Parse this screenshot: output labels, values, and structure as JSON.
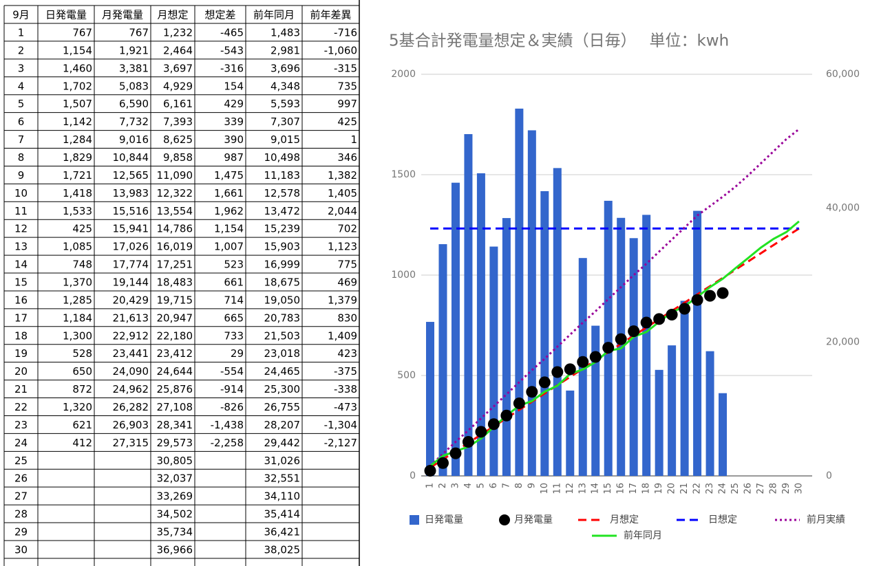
{
  "table": {
    "header": [
      "9月",
      "日発電量",
      "月発電量",
      "月想定",
      "想定差",
      "前年同月",
      "前年差異"
    ],
    "rows": [
      [
        "1",
        "767",
        "767",
        "1,232",
        "-465",
        "1,483",
        "-716"
      ],
      [
        "2",
        "1,154",
        "1,921",
        "2,464",
        "-543",
        "2,981",
        "-1,060"
      ],
      [
        "3",
        "1,460",
        "3,381",
        "3,697",
        "-316",
        "3,696",
        "-315"
      ],
      [
        "4",
        "1,702",
        "5,083",
        "4,929",
        "154",
        "4,348",
        "735"
      ],
      [
        "5",
        "1,507",
        "6,590",
        "6,161",
        "429",
        "5,593",
        "997"
      ],
      [
        "6",
        "1,142",
        "7,732",
        "7,393",
        "339",
        "7,307",
        "425"
      ],
      [
        "7",
        "1,284",
        "9,016",
        "8,625",
        "390",
        "9,015",
        "1"
      ],
      [
        "8",
        "1,829",
        "10,844",
        "9,858",
        "987",
        "10,498",
        "346"
      ],
      [
        "9",
        "1,721",
        "12,565",
        "11,090",
        "1,475",
        "11,183",
        "1,382"
      ],
      [
        "10",
        "1,418",
        "13,983",
        "12,322",
        "1,661",
        "12,578",
        "1,405"
      ],
      [
        "11",
        "1,533",
        "15,516",
        "13,554",
        "1,962",
        "13,472",
        "2,044"
      ],
      [
        "12",
        "425",
        "15,941",
        "14,786",
        "1,154",
        "15,239",
        "702"
      ],
      [
        "13",
        "1,085",
        "17,026",
        "16,019",
        "1,007",
        "15,903",
        "1,123"
      ],
      [
        "14",
        "748",
        "17,774",
        "17,251",
        "523",
        "16,999",
        "775"
      ],
      [
        "15",
        "1,370",
        "19,144",
        "18,483",
        "661",
        "18,675",
        "469"
      ],
      [
        "16",
        "1,285",
        "20,429",
        "19,715",
        "714",
        "19,050",
        "1,379"
      ],
      [
        "17",
        "1,184",
        "21,613",
        "20,947",
        "665",
        "20,783",
        "830"
      ],
      [
        "18",
        "1,300",
        "22,912",
        "22,180",
        "733",
        "21,503",
        "1,409"
      ],
      [
        "19",
        "528",
        "23,441",
        "23,412",
        "29",
        "23,018",
        "423"
      ],
      [
        "20",
        "650",
        "24,090",
        "24,644",
        "-554",
        "24,465",
        "-375"
      ],
      [
        "21",
        "872",
        "24,962",
        "25,876",
        "-914",
        "25,300",
        "-338"
      ],
      [
        "22",
        "1,320",
        "26,282",
        "27,108",
        "-826",
        "26,755",
        "-473"
      ],
      [
        "23",
        "621",
        "26,903",
        "28,341",
        "-1,438",
        "28,207",
        "-1,304"
      ],
      [
        "24",
        "412",
        "27,315",
        "29,573",
        "-2,258",
        "29,442",
        "-2,127"
      ],
      [
        "25",
        null,
        null,
        "30,805",
        null,
        "31,026",
        null
      ],
      [
        "26",
        null,
        null,
        "32,037",
        null,
        "32,551",
        null
      ],
      [
        "27",
        null,
        null,
        "33,269",
        null,
        "34,110",
        null
      ],
      [
        "28",
        null,
        null,
        "34,502",
        null,
        "35,414",
        null
      ],
      [
        "29",
        null,
        null,
        "35,734",
        null,
        "36,421",
        null
      ],
      [
        "30",
        null,
        null,
        "36,966",
        null,
        "38,025",
        null
      ]
    ]
  },
  "chart_data": {
    "type": "combo",
    "title": "5基合計発電量想定＆実績（日毎）　 単位：kwh",
    "categories": [
      1,
      2,
      3,
      4,
      5,
      6,
      7,
      8,
      9,
      10,
      11,
      12,
      13,
      14,
      15,
      16,
      17,
      18,
      19,
      20,
      21,
      22,
      23,
      24,
      25,
      26,
      27,
      28,
      29,
      30
    ],
    "ylim": [
      0,
      2000
    ],
    "yticks": [
      0,
      500,
      1000,
      1500,
      2000
    ],
    "y2lim": [
      0,
      60000
    ],
    "y2ticks": [
      0,
      {
        "value": 20000,
        "label": "20,000"
      },
      {
        "value": 40000,
        "label": "40,000"
      },
      {
        "value": 60000,
        "label": "60,000"
      }
    ],
    "grid": true,
    "legend": "bottom",
    "series": [
      {
        "name": "日発電量",
        "type": "bar",
        "color": "#3366cc",
        "values": [
          767,
          1154,
          1460,
          1702,
          1507,
          1142,
          1284,
          1829,
          1721,
          1418,
          1533,
          425,
          1085,
          748,
          1370,
          1285,
          1184,
          1300,
          528,
          650,
          872,
          1320,
          621,
          412,
          null,
          null,
          null,
          null,
          null,
          null
        ]
      },
      {
        "name": "月発電量",
        "type": "scatter",
        "axis": "y2",
        "color": "#000000",
        "values": [
          767,
          1921,
          3381,
          5083,
          6590,
          7732,
          9016,
          10844,
          12565,
          13983,
          15516,
          15941,
          17026,
          17774,
          19144,
          20429,
          21613,
          22912,
          23441,
          24090,
          24962,
          26282,
          26903,
          27315,
          null,
          null,
          null,
          null,
          null,
          null
        ]
      },
      {
        "name": "月想定",
        "type": "line",
        "dash": "dashed",
        "axis": "y2",
        "color": "#ff0000",
        "values": [
          1232,
          2464,
          3697,
          4929,
          6161,
          7393,
          8625,
          9858,
          11090,
          12322,
          13554,
          14786,
          16019,
          17251,
          18483,
          19715,
          20947,
          22180,
          23412,
          24644,
          25876,
          27108,
          28341,
          29573,
          30805,
          32037,
          33269,
          34502,
          35734,
          36966
        ]
      },
      {
        "name": "日想定",
        "type": "line",
        "dash": "dashed",
        "color": "#0000ff",
        "values": [
          1232,
          1232,
          1232,
          1232,
          1232,
          1232,
          1232,
          1232,
          1232,
          1232,
          1232,
          1232,
          1232,
          1232,
          1232,
          1232,
          1232,
          1232,
          1232,
          1232,
          1232,
          1232,
          1232,
          1232,
          1232,
          1232,
          1232,
          1232,
          1232,
          1232
        ]
      },
      {
        "name": "前月実績",
        "type": "line",
        "dash": "dotted",
        "axis": "y2",
        "color": "#990099",
        "values": [
          1500,
          3300,
          5100,
          6800,
          8600,
          10400,
          12200,
          14000,
          15800,
          17500,
          19300,
          21100,
          22900,
          24600,
          26400,
          28200,
          30000,
          31700,
          33500,
          35300,
          37100,
          38900,
          40300,
          41700,
          43200,
          44900,
          46700,
          48500,
          50300,
          51800
        ]
      },
      {
        "name": "前年同月",
        "type": "line",
        "axis": "y2",
        "color": "#22e322",
        "values": [
          1483,
          2981,
          3696,
          4348,
          5593,
          7307,
          9015,
          10498,
          11183,
          12578,
          13472,
          15239,
          15903,
          16999,
          18675,
          19050,
          20783,
          21503,
          23018,
          24465,
          25300,
          26755,
          28207,
          29442,
          31026,
          32551,
          34110,
          35414,
          36421,
          38025
        ]
      }
    ]
  }
}
